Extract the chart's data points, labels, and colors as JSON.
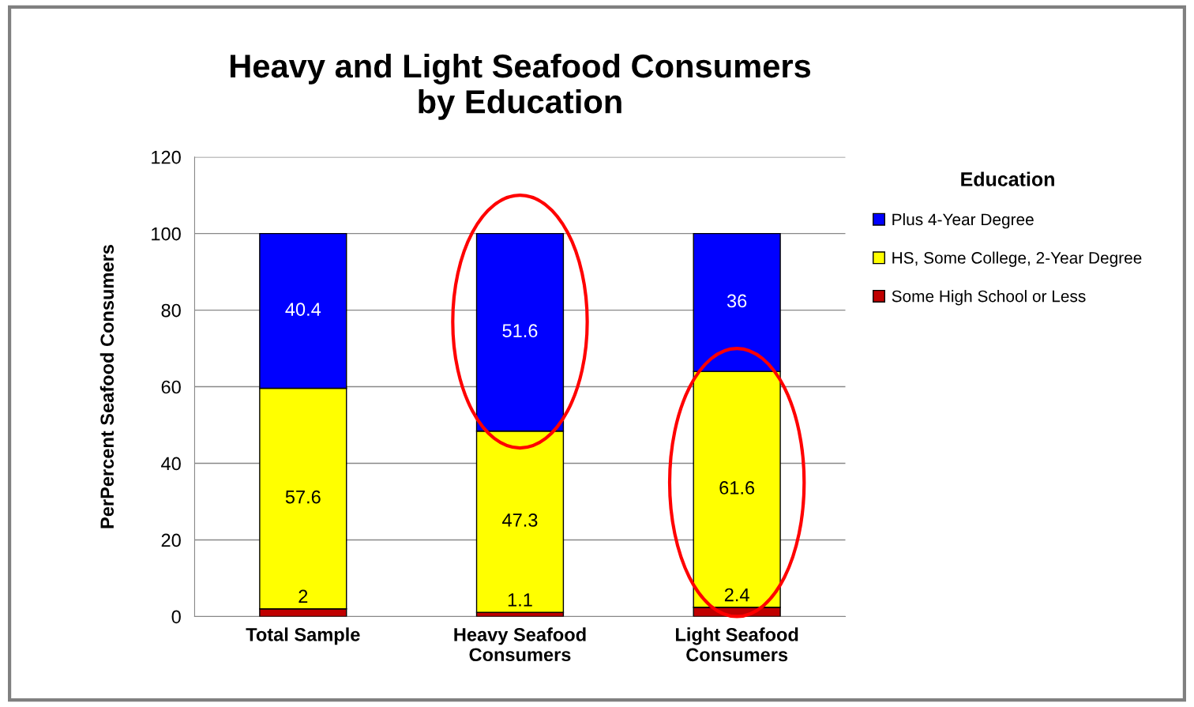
{
  "chart_data": {
    "type": "bar",
    "title": "Heavy and Light Seafood Consumers\nby Education",
    "ylabel": "PerPercent Seafood Consumers",
    "legend_title": "Education",
    "categories": [
      "Total Sample",
      "Heavy Seafood\nConsumers",
      "Light Seafood\nConsumers"
    ],
    "series": [
      {
        "name": "Some High School or Less",
        "color": "#c00000",
        "values": [
          2,
          1.1,
          2.4
        ]
      },
      {
        "name": "HS, Some College, 2-Year Degree",
        "color": "#ffff00",
        "values": [
          57.6,
          47.3,
          61.6
        ]
      },
      {
        "name": "Plus 4-Year Degree",
        "color": "#0000ff",
        "values": [
          40.4,
          51.6,
          36
        ]
      }
    ],
    "stacked": true,
    "ylim": [
      0,
      120
    ],
    "yticks": [
      0,
      20,
      40,
      60,
      80,
      100,
      120
    ],
    "grid": "y",
    "legend": "right",
    "data_labels": true
  }
}
